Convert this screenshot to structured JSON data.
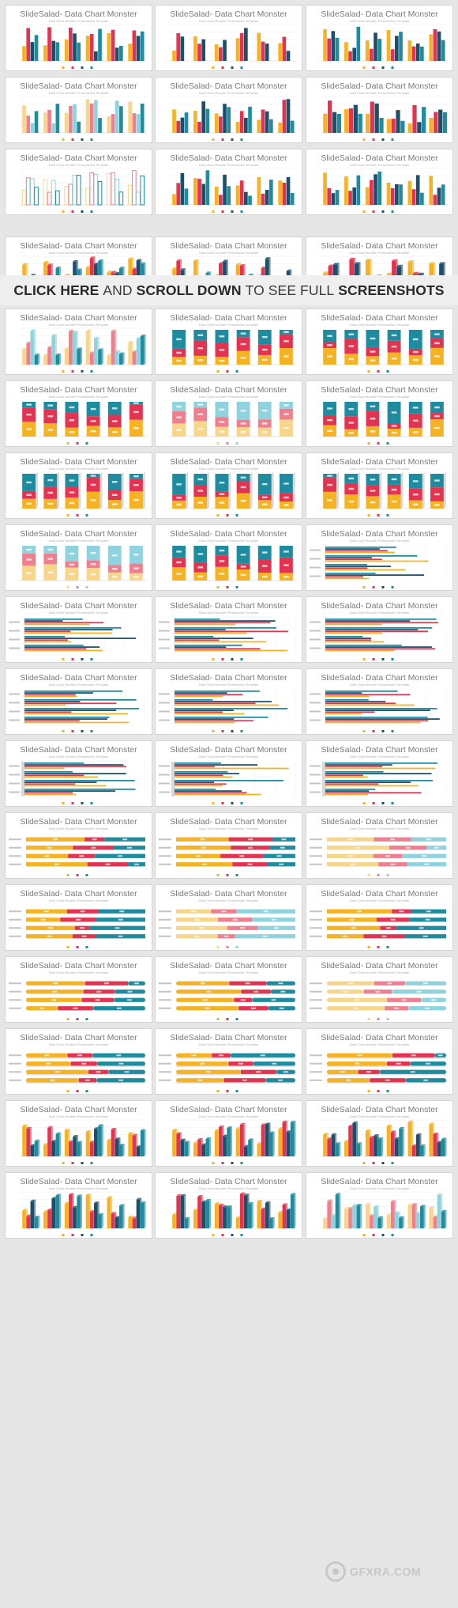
{
  "thumb_title": "SlideSalad- Data Chart Monster",
  "thumb_subtitle": "Data Chart Monster Presentation Template",
  "banner": {
    "part1": "CLICK HERE",
    "part2": "AND",
    "part3": "SCROLL DOWN",
    "part4": "TO SEE FULL",
    "part5": "SCREENSHOTS"
  },
  "watermark": {
    "text": "GFXRA.COM",
    "icon": "gfxra-logo-icon"
  },
  "colors": {
    "teal": "#1e8c9e",
    "navy": "#1d4e6b",
    "red": "#e23350",
    "yellow": "#f5b323",
    "pink": "#ef7f8f",
    "lightblue": "#8fd3de",
    "cream": "#f7d58a"
  },
  "thumbs": [
    {
      "kind": "vbar",
      "variant": "plain"
    },
    {
      "kind": "vbar",
      "variant": "thin"
    },
    {
      "kind": "vbar",
      "variant": "plain4"
    },
    {
      "kind": "vbar",
      "variant": "pattern"
    },
    {
      "kind": "vbar",
      "variant": "plain4"
    },
    {
      "kind": "vbar",
      "variant": "wide"
    },
    {
      "kind": "vbar",
      "variant": "outline"
    },
    {
      "kind": "vbar",
      "variant": "shadow"
    },
    {
      "kind": "vbar",
      "variant": "plain4"
    },
    {
      "kind": "vbar",
      "variant": "3d"
    },
    {
      "kind": "vbar",
      "variant": "3d"
    },
    {
      "kind": "vbar",
      "variant": "3dthin"
    },
    {
      "kind": "vbar",
      "variant": "3dlight"
    },
    {
      "kind": "vstack",
      "variant": "plain"
    },
    {
      "kind": "vstack",
      "variant": "plain"
    },
    {
      "kind": "vstack",
      "variant": "plain"
    },
    {
      "kind": "vstack",
      "variant": "light"
    },
    {
      "kind": "vstack",
      "variant": "plain"
    },
    {
      "kind": "vstack",
      "variant": "3d"
    },
    {
      "kind": "vstack",
      "variant": "3d"
    },
    {
      "kind": "vstack",
      "variant": "3d"
    },
    {
      "kind": "vstack",
      "variant": "light"
    },
    {
      "kind": "vstack",
      "variant": "plain"
    },
    {
      "kind": "hbar",
      "variant": "plain"
    },
    {
      "kind": "hbar",
      "variant": "plain"
    },
    {
      "kind": "hbar",
      "variant": "plain"
    },
    {
      "kind": "hbar",
      "variant": "plain"
    },
    {
      "kind": "hbar",
      "variant": "plain"
    },
    {
      "kind": "hbar",
      "variant": "plain"
    },
    {
      "kind": "hbar",
      "variant": "plain"
    },
    {
      "kind": "hbar",
      "variant": "wall"
    },
    {
      "kind": "hbar",
      "variant": "wall"
    },
    {
      "kind": "hbar",
      "variant": "wall"
    },
    {
      "kind": "hstack",
      "variant": "plain"
    },
    {
      "kind": "hstack",
      "variant": "plain"
    },
    {
      "kind": "hstack",
      "variant": "light"
    },
    {
      "kind": "hstack",
      "variant": "plain"
    },
    {
      "kind": "hstack",
      "variant": "light"
    },
    {
      "kind": "hstack",
      "variant": "plain"
    },
    {
      "kind": "hstack",
      "variant": "rounded"
    },
    {
      "kind": "hstack",
      "variant": "rounded"
    },
    {
      "kind": "hstack",
      "variant": "lightrounded"
    },
    {
      "kind": "hstack",
      "variant": "3d"
    },
    {
      "kind": "hstack",
      "variant": "3d"
    },
    {
      "kind": "hstack",
      "variant": "3d"
    },
    {
      "kind": "vbar",
      "variant": "3d"
    },
    {
      "kind": "vbar",
      "variant": "3d"
    },
    {
      "kind": "vbar",
      "variant": "3d"
    },
    {
      "kind": "vbar",
      "variant": "3d"
    },
    {
      "kind": "vbar",
      "variant": "3d"
    },
    {
      "kind": "vbar",
      "variant": "3dlight"
    }
  ]
}
